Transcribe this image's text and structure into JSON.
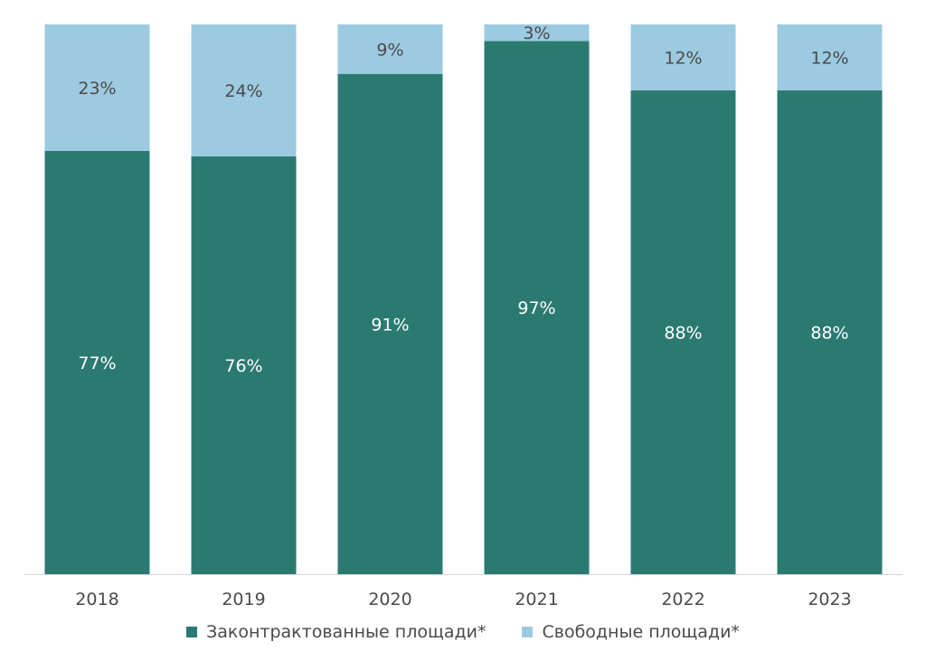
{
  "chart_data": {
    "type": "bar",
    "stacked": true,
    "categories": [
      "2018",
      "2019",
      "2020",
      "2021",
      "2022",
      "2023"
    ],
    "series": [
      {
        "name": "Законтрактованные площади*",
        "values": [
          77,
          76,
          91,
          97,
          88,
          88
        ],
        "labels": [
          "77%",
          "76%",
          "91%",
          "97%",
          "88%",
          "88%"
        ],
        "color": "#2b7a72",
        "label_color": "#ffffff"
      },
      {
        "name": "Свободные площади*",
        "values": [
          23,
          24,
          9,
          3,
          12,
          12
        ],
        "labels": [
          "23%",
          "24%",
          "9%",
          "3%",
          "12%",
          "12%"
        ],
        "color": "#9ccae0",
        "label_color": "#4a4a4a"
      }
    ],
    "ylim": [
      0,
      100
    ],
    "legend_position": "bottom",
    "grid": false
  }
}
